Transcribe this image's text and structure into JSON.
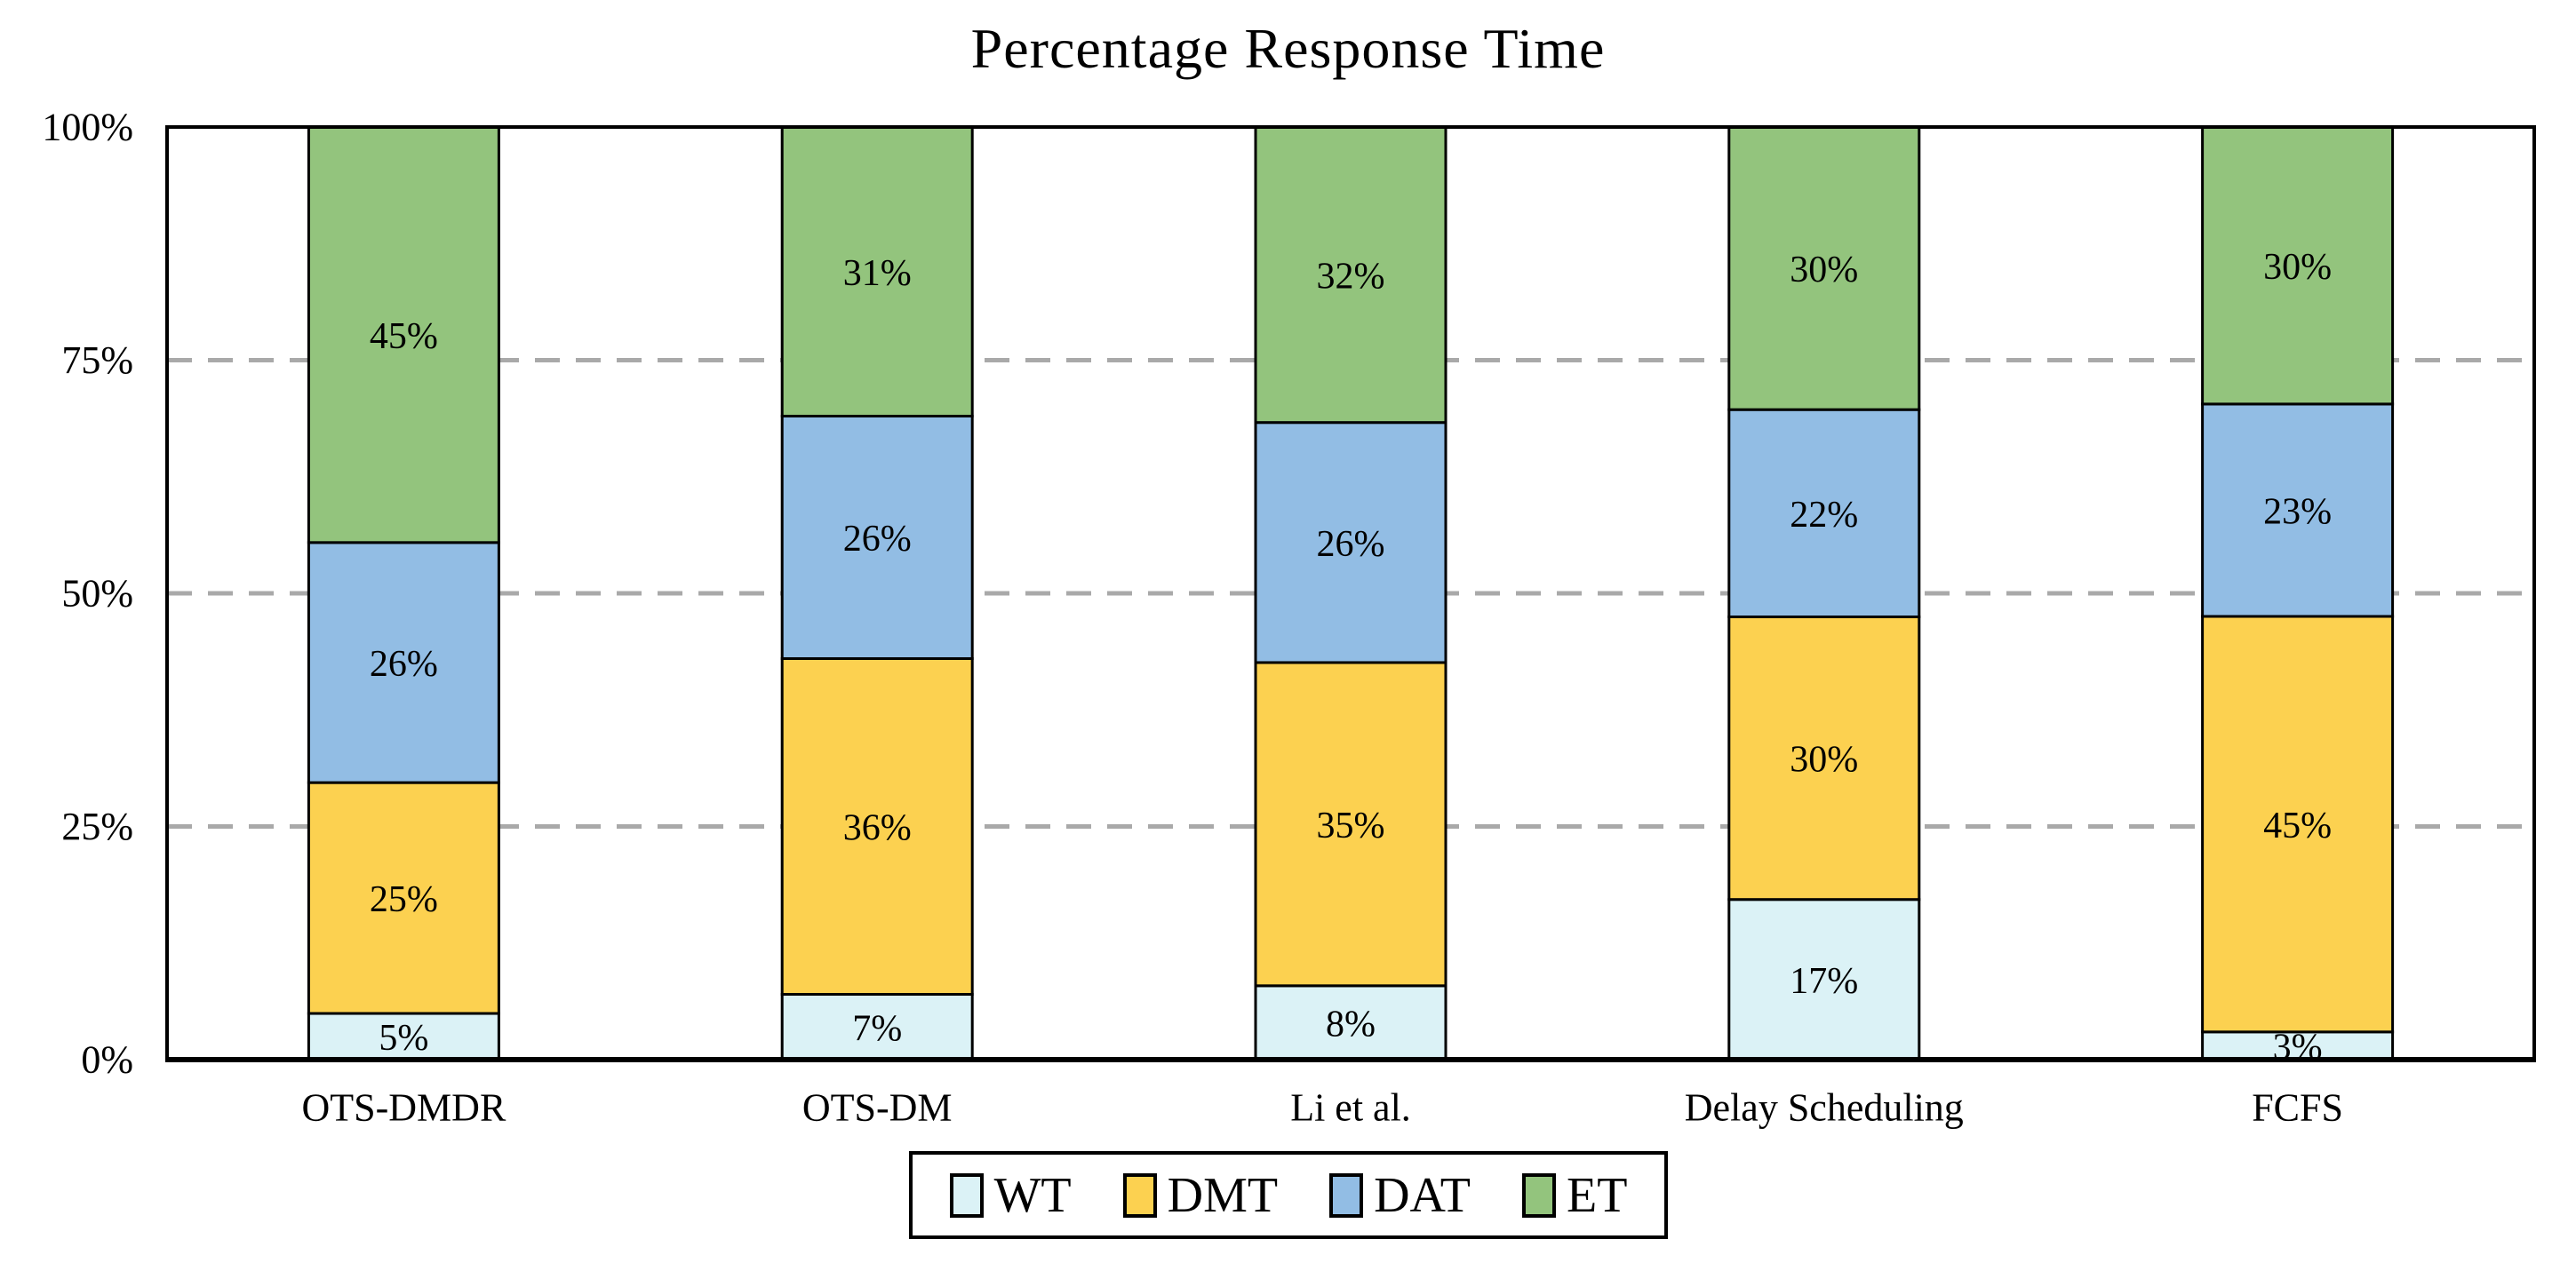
{
  "chart_data": {
    "type": "bar",
    "stacked": true,
    "title": "Percentage Response Time",
    "categories": [
      "OTS-DMDR",
      "OTS-DM",
      "Li et al.",
      "Delay Scheduling",
      "FCFS"
    ],
    "series": [
      {
        "name": "WT",
        "color": "#DBF2F6",
        "values": [
          5,
          7,
          8,
          17,
          3
        ]
      },
      {
        "name": "DMT",
        "color": "#FCD150",
        "values": [
          25,
          36,
          35,
          30,
          45
        ]
      },
      {
        "name": "DAT",
        "color": "#92BDE4",
        "values": [
          26,
          26,
          26,
          22,
          23
        ]
      },
      {
        "name": "ET",
        "color": "#93C47D",
        "values": [
          45,
          31,
          32,
          30,
          30
        ]
      }
    ],
    "value_label_suffix": "%",
    "y_ticks": [
      "0%",
      "25%",
      "50%",
      "75%",
      "100%"
    ],
    "y_tick_values": [
      0,
      25,
      50,
      75,
      100
    ],
    "ylim": [
      0,
      100
    ],
    "grid": {
      "horizontal_at": [
        25,
        50,
        75
      ],
      "style": "dashed",
      "color": "#A9A9A9"
    },
    "axis_color": "#000000",
    "bar_border_color": "#000000",
    "legend_position": "bottom"
  }
}
